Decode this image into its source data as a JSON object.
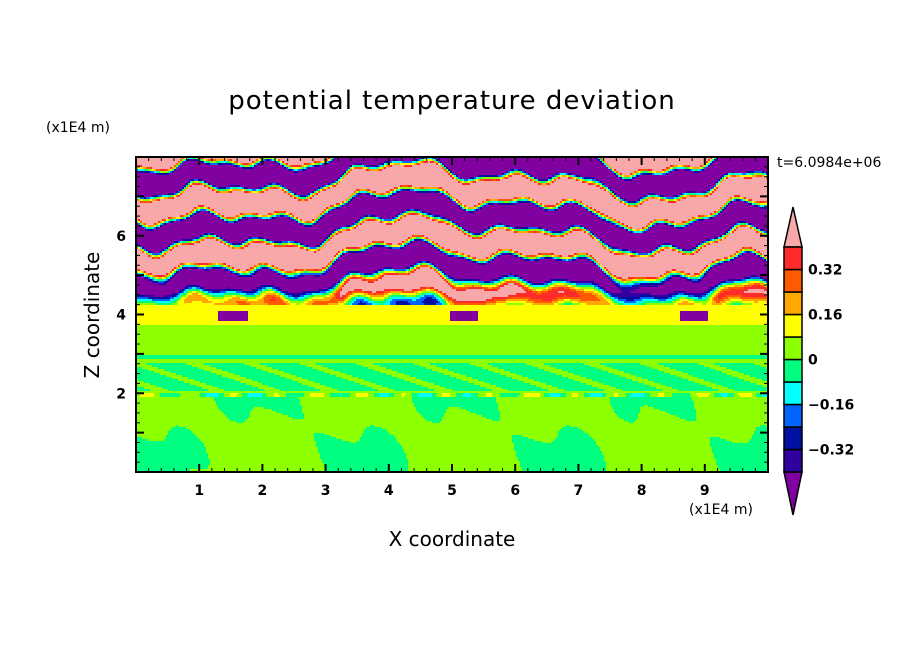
{
  "chart_data": {
    "type": "heatmap",
    "title": "potential temperature deviation",
    "xlabel": "X coordinate",
    "ylabel": "Z coordinate",
    "x_unit": "(x1E4 m)",
    "y_unit": "(x1E4 m)",
    "time_label": "t=6.0984e+06",
    "xlim": [
      0,
      10
    ],
    "ylim": [
      0,
      8
    ],
    "x_ticks": [
      1,
      2,
      3,
      4,
      5,
      6,
      7,
      8,
      9
    ],
    "x_tick_labels": [
      "1",
      "2",
      "3",
      "4",
      "5",
      "6",
      "7",
      "8",
      "9"
    ],
    "y_ticks": [
      2,
      4,
      6
    ],
    "y_tick_labels": [
      "2",
      "4",
      "6"
    ],
    "colorbar": {
      "levels": [
        -0.4,
        -0.32,
        -0.24,
        -0.16,
        -0.08,
        0,
        0.08,
        0.16,
        0.24,
        0.32,
        0.4
      ],
      "tick_values": [
        0.32,
        0.16,
        0,
        -0.16,
        -0.32
      ],
      "tick_labels": [
        "0.32",
        "0.16",
        "0",
        "−0.16",
        "−0.32"
      ],
      "colors": [
        "#3000a0",
        "#0010a0",
        "#0064ff",
        "#00ffff",
        "#00ff80",
        "#8cff00",
        "#ffff00",
        "#ffa800",
        "#ff5a00",
        "#ff2a2a"
      ],
      "under_color": "#8000a0",
      "over_color": "#f8a8a8",
      "extend": "both"
    }
  }
}
